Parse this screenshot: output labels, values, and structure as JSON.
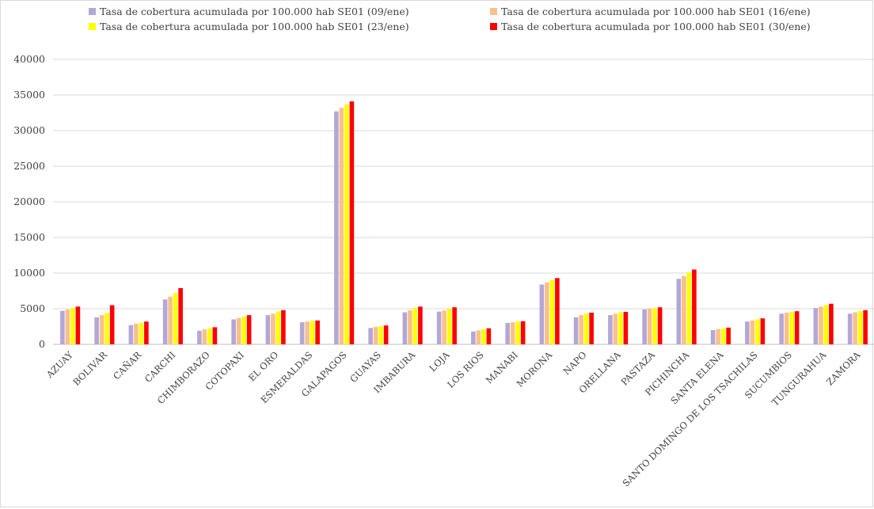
{
  "chart_data": {
    "type": "bar",
    "title": "",
    "xlabel": "",
    "ylabel": "",
    "ylim": [
      0,
      40000
    ],
    "yticks": [
      0,
      5000,
      10000,
      15000,
      20000,
      25000,
      30000,
      35000,
      40000
    ],
    "grid": true,
    "legend_position": "top",
    "categories": [
      "AZUAY",
      "BOLIVAR",
      "CAÑAR",
      "CARCHI",
      "CHIMBORAZO",
      "COTOPAXI",
      "EL ORO",
      "ESMERALDAS",
      "GALAPAGOS",
      "GUAYAS",
      "IMBABURA",
      "LOJA",
      "LOS RIOS",
      "MANABI",
      "MORONA",
      "NAPO",
      "ORELLANA",
      "PASTAZA",
      "PICHINCHA",
      "SANTA ELENA",
      "SANTO DOMINGO DE LOS TSACHILAS",
      "SUCUMBIOS",
      "TUNGURAHUA",
      "ZAMORA"
    ],
    "series": [
      {
        "name": "Tasa de cobertura acumulada por 100.000 hab SE01 (09/ene)",
        "color": "#b4a7d6",
        "values": [
          4700,
          3800,
          2700,
          6300,
          1900,
          3500,
          4100,
          3100,
          32700,
          2300,
          4500,
          4600,
          1800,
          3000,
          8400,
          3800,
          4100,
          4900,
          9200,
          2000,
          3200,
          4300,
          5100,
          4300
        ]
      },
      {
        "name": "Tasa de cobertura acumulada por 100.000 hab SE01 (16/ene)",
        "color": "#f9c08b",
        "values": [
          4900,
          4100,
          2900,
          6700,
          2100,
          3700,
          4300,
          3200,
          33200,
          2450,
          4800,
          4750,
          1950,
          3100,
          8700,
          4100,
          4300,
          5000,
          9600,
          2150,
          3350,
          4450,
          5300,
          4500
        ]
      },
      {
        "name": "Tasa de cobertura acumulada por 100.000 hab SE01 (23/ene)",
        "color": "#ffff00",
        "values": [
          5100,
          4400,
          3000,
          7200,
          2250,
          3900,
          4600,
          3300,
          33700,
          2550,
          5100,
          5000,
          2100,
          3200,
          9000,
          4300,
          4500,
          5100,
          10100,
          2250,
          3500,
          4550,
          5500,
          4650
        ]
      },
      {
        "name": "Tasa de cobertura acumulada por 100.000 hab SE01 (30/ene)",
        "color": "#ff0000",
        "values": [
          5300,
          5500,
          3200,
          7900,
          2400,
          4100,
          4800,
          3350,
          34100,
          2650,
          5300,
          5200,
          2250,
          3250,
          9300,
          4450,
          4550,
          5200,
          10500,
          2350,
          3650,
          4650,
          5700,
          4800
        ]
      }
    ]
  }
}
